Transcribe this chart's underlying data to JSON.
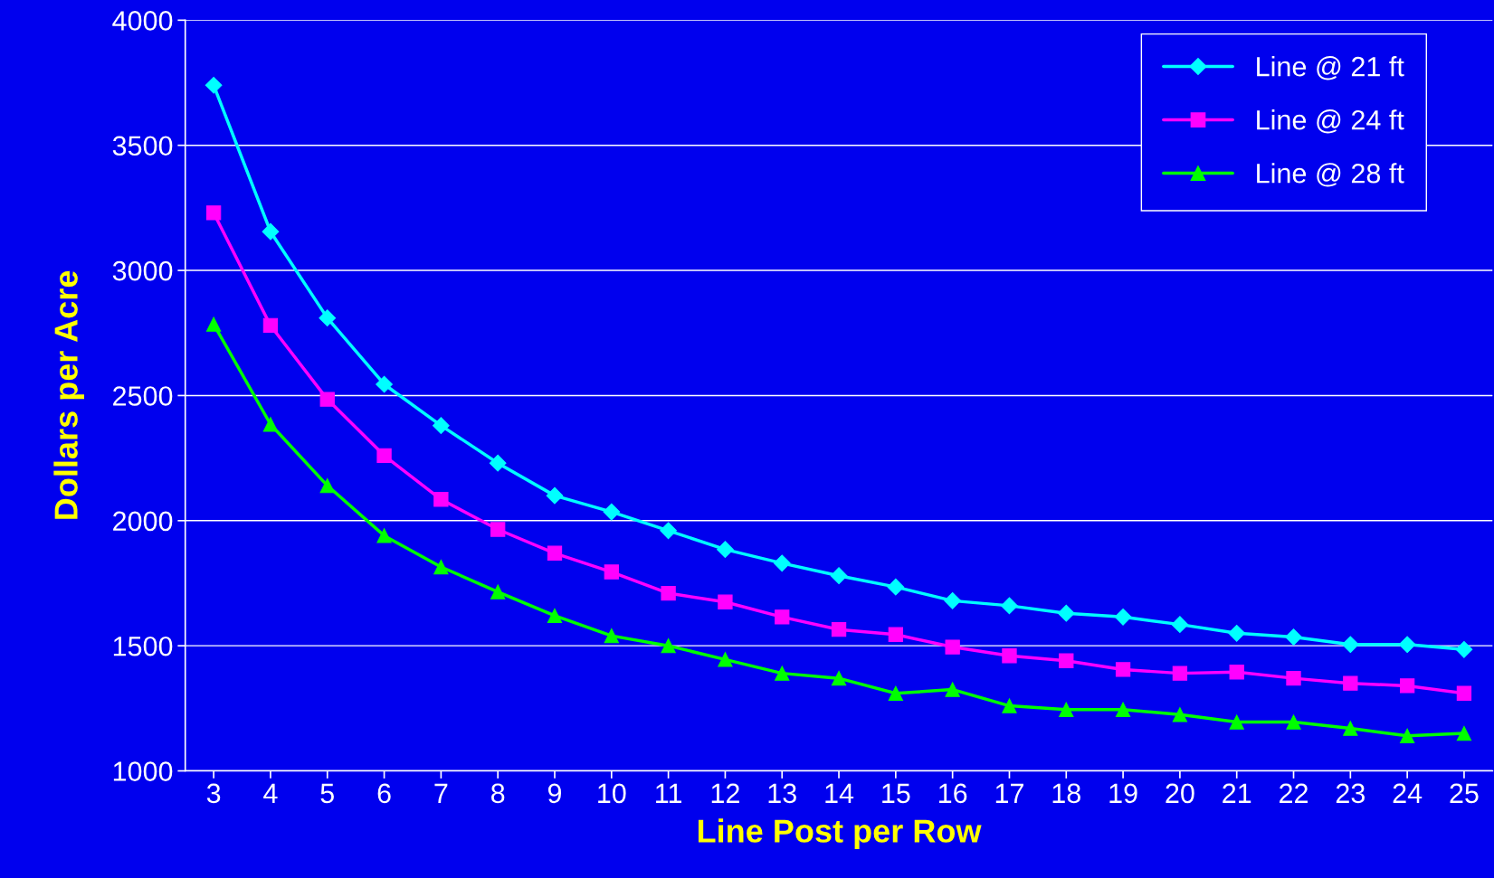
{
  "chart_data": {
    "type": "line",
    "xlabel": "Line Post per Row",
    "ylabel": "Dollars per Acre",
    "categories": [
      "3",
      "4",
      "5",
      "6",
      "7",
      "8",
      "9",
      "10",
      "11",
      "12",
      "13",
      "14",
      "15",
      "16",
      "17",
      "18",
      "19",
      "20",
      "21",
      "22",
      "23",
      "24",
      "25"
    ],
    "series": [
      {
        "name": "Line @ 21 ft",
        "color": "#00ffff",
        "marker": "diamond",
        "values": [
          3740,
          3155,
          2810,
          2545,
          2380,
          2230,
          2100,
          2035,
          1960,
          1885,
          1830,
          1780,
          1735,
          1680,
          1660,
          1630,
          1615,
          1585,
          1550,
          1535,
          1505,
          1505,
          1485
        ]
      },
      {
        "name": "Line @ 24 ft",
        "color": "#ff00ff",
        "marker": "square",
        "values": [
          3230,
          2780,
          2485,
          2260,
          2085,
          1965,
          1870,
          1795,
          1710,
          1675,
          1615,
          1565,
          1545,
          1495,
          1460,
          1440,
          1405,
          1390,
          1395,
          1370,
          1350,
          1340,
          1310
        ]
      },
      {
        "name": "Line @ 28 ft",
        "color": "#00ff00",
        "marker": "triangle",
        "values": [
          2785,
          2385,
          2140,
          1940,
          1815,
          1715,
          1620,
          1540,
          1500,
          1445,
          1390,
          1370,
          1310,
          1325,
          1260,
          1245,
          1245,
          1225,
          1195,
          1195,
          1170,
          1140,
          1150
        ]
      }
    ],
    "ylim": [
      1000,
      4000
    ],
    "yticks": [
      1000,
      1500,
      2000,
      2500,
      3000,
      3500,
      4000
    ],
    "grid": "y",
    "legend": "top right"
  }
}
